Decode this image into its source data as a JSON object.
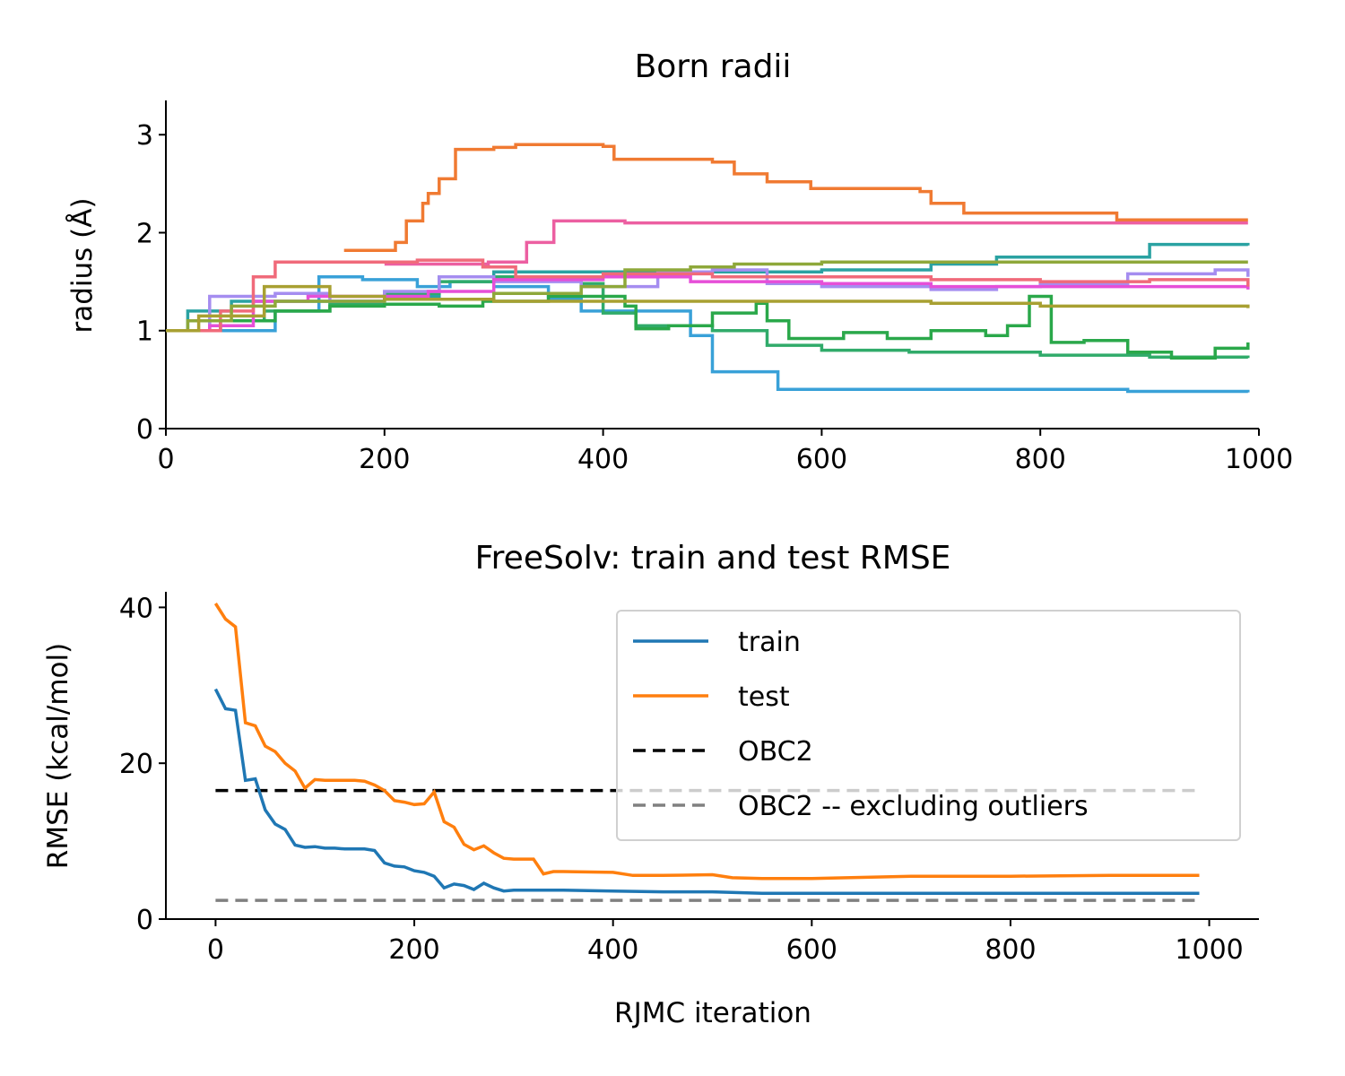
{
  "chart_data": [
    {
      "type": "line",
      "title": "Born radii",
      "xlabel": "",
      "ylabel": "radius (Å)",
      "xlim": [
        0,
        1000
      ],
      "ylim": [
        0,
        3.35
      ],
      "xticks": [
        0,
        200,
        400,
        600,
        800,
        1000
      ],
      "yticks": [
        0,
        1,
        2,
        3
      ],
      "xtick_labels": [
        "0",
        "200",
        "400",
        "600",
        "800",
        "1000"
      ],
      "ytick_labels": [
        "0",
        "1",
        "2",
        "3"
      ],
      "step": true,
      "grid": false,
      "legend": "none",
      "series": [
        {
          "color": "#f07a32",
          "points": [
            [
              163,
              1.82
            ],
            [
              210,
              1.82
            ],
            [
              210,
              1.9
            ],
            [
              220,
              2.12
            ],
            [
              235,
              2.3
            ],
            [
              240,
              2.4
            ],
            [
              250,
              2.55
            ],
            [
              265,
              2.85
            ],
            [
              300,
              2.87
            ],
            [
              320,
              2.9
            ],
            [
              400,
              2.88
            ],
            [
              410,
              2.75
            ],
            [
              500,
              2.72
            ],
            [
              520,
              2.6
            ],
            [
              550,
              2.52
            ],
            [
              590,
              2.45
            ],
            [
              690,
              2.42
            ],
            [
              700,
              2.3
            ],
            [
              730,
              2.2
            ],
            [
              770,
              2.2
            ],
            [
              860,
              2.2
            ],
            [
              870,
              2.13
            ],
            [
              990,
              2.13
            ]
          ]
        },
        {
          "color": "#ec5fa1",
          "points": [
            [
              200,
              1.68
            ],
            [
              295,
              1.7
            ],
            [
              330,
              1.9
            ],
            [
              355,
              2.12
            ],
            [
              420,
              2.1
            ],
            [
              500,
              2.1
            ],
            [
              700,
              2.1
            ],
            [
              990,
              2.1
            ]
          ]
        },
        {
          "color": "#39a1d8",
          "points": [
            [
              0,
              1.0
            ],
            [
              95,
              1.0
            ],
            [
              100,
              1.2
            ],
            [
              140,
              1.55
            ],
            [
              180,
              1.52
            ],
            [
              230,
              1.45
            ],
            [
              260,
              1.5
            ],
            [
              300,
              1.45
            ],
            [
              350,
              1.32
            ],
            [
              380,
              1.2
            ],
            [
              480,
              0.95
            ],
            [
              500,
              0.58
            ],
            [
              540,
              0.58
            ],
            [
              560,
              0.4
            ],
            [
              800,
              0.4
            ],
            [
              880,
              0.38
            ],
            [
              990,
              0.37
            ]
          ]
        },
        {
          "color": "#2aa2a2",
          "points": [
            [
              0,
              1.0
            ],
            [
              20,
              1.2
            ],
            [
              60,
              1.3
            ],
            [
              140,
              1.3
            ],
            [
              200,
              1.35
            ],
            [
              250,
              1.55
            ],
            [
              300,
              1.6
            ],
            [
              500,
              1.6
            ],
            [
              600,
              1.62
            ],
            [
              700,
              1.68
            ],
            [
              760,
              1.75
            ],
            [
              900,
              1.88
            ],
            [
              990,
              1.87
            ]
          ]
        },
        {
          "color": "#30ab6a",
          "points": [
            [
              0,
              1.0
            ],
            [
              40,
              1.1
            ],
            [
              90,
              1.2
            ],
            [
              150,
              1.28
            ],
            [
              200,
              1.38
            ],
            [
              250,
              1.5
            ],
            [
              300,
              1.55
            ],
            [
              380,
              1.48
            ],
            [
              400,
              1.18
            ],
            [
              430,
              1.05
            ],
            [
              500,
              1.0
            ],
            [
              550,
              0.85
            ],
            [
              600,
              0.8
            ],
            [
              680,
              0.78
            ],
            [
              800,
              0.75
            ],
            [
              900,
              0.73
            ],
            [
              990,
              0.72
            ]
          ]
        },
        {
          "color": "#2aa84a",
          "points": [
            [
              0,
              1.0
            ],
            [
              50,
              1.1
            ],
            [
              100,
              1.2
            ],
            [
              150,
              1.25
            ],
            [
              200,
              1.27
            ],
            [
              250,
              1.25
            ],
            [
              290,
              1.3
            ],
            [
              350,
              1.35
            ],
            [
              390,
              1.35
            ],
            [
              420,
              1.25
            ],
            [
              430,
              1.02
            ],
            [
              460,
              1.05
            ],
            [
              500,
              1.18
            ],
            [
              540,
              1.28
            ],
            [
              550,
              1.1
            ],
            [
              570,
              0.92
            ],
            [
              620,
              0.98
            ],
            [
              660,
              0.92
            ],
            [
              700,
              1.0
            ],
            [
              750,
              0.95
            ],
            [
              770,
              1.05
            ],
            [
              790,
              1.35
            ],
            [
              810,
              0.88
            ],
            [
              840,
              0.9
            ],
            [
              880,
              0.78
            ],
            [
              920,
              0.72
            ],
            [
              960,
              0.82
            ],
            [
              990,
              0.88
            ]
          ]
        },
        {
          "color": "#a58df0",
          "points": [
            [
              0,
              1.0
            ],
            [
              40,
              1.35
            ],
            [
              100,
              1.38
            ],
            [
              150,
              1.3
            ],
            [
              200,
              1.4
            ],
            [
              250,
              1.55
            ],
            [
              300,
              1.5
            ],
            [
              380,
              1.45
            ],
            [
              450,
              1.6
            ],
            [
              500,
              1.62
            ],
            [
              550,
              1.48
            ],
            [
              600,
              1.45
            ],
            [
              700,
              1.42
            ],
            [
              760,
              1.45
            ],
            [
              800,
              1.48
            ],
            [
              880,
              1.58
            ],
            [
              960,
              1.62
            ],
            [
              990,
              1.55
            ]
          ]
        },
        {
          "color": "#e64fd8",
          "points": [
            [
              0,
              1.0
            ],
            [
              40,
              1.05
            ],
            [
              80,
              1.3
            ],
            [
              130,
              1.35
            ],
            [
              200,
              1.35
            ],
            [
              240,
              1.4
            ],
            [
              300,
              1.52
            ],
            [
              400,
              1.55
            ],
            [
              480,
              1.5
            ],
            [
              600,
              1.48
            ],
            [
              700,
              1.45
            ],
            [
              800,
              1.45
            ],
            [
              900,
              1.45
            ],
            [
              990,
              1.42
            ]
          ]
        },
        {
          "color": "#f06a7a",
          "points": [
            [
              0,
              1.0
            ],
            [
              50,
              1.2
            ],
            [
              80,
              1.55
            ],
            [
              100,
              1.7
            ],
            [
              170,
              1.7
            ],
            [
              230,
              1.72
            ],
            [
              290,
              1.65
            ],
            [
              320,
              1.55
            ],
            [
              400,
              1.58
            ],
            [
              500,
              1.55
            ],
            [
              600,
              1.55
            ],
            [
              700,
              1.52
            ],
            [
              800,
              1.5
            ],
            [
              900,
              1.52
            ],
            [
              990,
              1.45
            ]
          ]
        },
        {
          "color": "#8ea83a",
          "points": [
            [
              0,
              1.0
            ],
            [
              20,
              1.1
            ],
            [
              60,
              1.25
            ],
            [
              100,
              1.3
            ],
            [
              200,
              1.32
            ],
            [
              300,
              1.38
            ],
            [
              380,
              1.45
            ],
            [
              420,
              1.62
            ],
            [
              480,
              1.65
            ],
            [
              520,
              1.68
            ],
            [
              600,
              1.7
            ],
            [
              800,
              1.7
            ],
            [
              990,
              1.7
            ]
          ]
        },
        {
          "color": "#a8a032",
          "points": [
            [
              0,
              1.0
            ],
            [
              30,
              1.15
            ],
            [
              90,
              1.45
            ],
            [
              150,
              1.35
            ],
            [
              200,
              1.32
            ],
            [
              300,
              1.3
            ],
            [
              400,
              1.3
            ],
            [
              500,
              1.3
            ],
            [
              700,
              1.28
            ],
            [
              800,
              1.25
            ],
            [
              990,
              1.23
            ]
          ]
        }
      ]
    },
    {
      "type": "line",
      "title": "FreeSolv: train and test RMSE",
      "xlabel": "RJMC iteration",
      "ylabel": "RMSE (kcal/mol)",
      "xlim": [
        -50,
        1050
      ],
      "ylim": [
        0,
        42
      ],
      "xticks": [
        0,
        200,
        400,
        600,
        800,
        1000
      ],
      "yticks": [
        0,
        20,
        40
      ],
      "xtick_labels": [
        "0",
        "200",
        "400",
        "600",
        "800",
        "1000"
      ],
      "ytick_labels": [
        "0",
        "20",
        "40"
      ],
      "grid": false,
      "legend": "upper right",
      "series": [
        {
          "name": "train",
          "color": "#1f77b4",
          "style": "solid",
          "x": [
            0,
            10,
            20,
            30,
            40,
            50,
            60,
            70,
            80,
            90,
            100,
            110,
            120,
            130,
            140,
            150,
            160,
            170,
            180,
            190,
            200,
            210,
            220,
            230,
            240,
            250,
            260,
            270,
            280,
            290,
            300,
            350,
            400,
            450,
            500,
            550,
            600,
            700,
            800,
            900,
            990
          ],
          "y": [
            29.5,
            27,
            26.8,
            17.8,
            18,
            14,
            12.2,
            11.5,
            9.5,
            9.2,
            9.3,
            9.1,
            9.1,
            9.0,
            9.0,
            9.0,
            8.8,
            7.2,
            6.8,
            6.7,
            6.2,
            6.0,
            5.5,
            4.0,
            4.5,
            4.3,
            3.8,
            4.6,
            4.0,
            3.6,
            3.7,
            3.7,
            3.6,
            3.5,
            3.5,
            3.3,
            3.3,
            3.3,
            3.3,
            3.3,
            3.3
          ]
        },
        {
          "name": "test",
          "color": "#ff7f0e",
          "style": "solid",
          "x": [
            0,
            10,
            20,
            30,
            40,
            50,
            60,
            70,
            80,
            90,
            100,
            110,
            120,
            130,
            140,
            150,
            160,
            170,
            180,
            190,
            200,
            210,
            220,
            230,
            240,
            250,
            260,
            270,
            280,
            290,
            300,
            320,
            330,
            340,
            350,
            400,
            420,
            450,
            500,
            520,
            550,
            600,
            700,
            800,
            900,
            990
          ],
          "y": [
            40.5,
            38.5,
            37.5,
            25.2,
            24.8,
            22.2,
            21.5,
            20,
            19,
            16.8,
            17.9,
            17.8,
            17.8,
            17.8,
            17.8,
            17.7,
            17.2,
            16.5,
            15.2,
            15.0,
            14.7,
            14.8,
            16.3,
            12.5,
            11.8,
            9.6,
            8.9,
            9.4,
            8.5,
            7.8,
            7.7,
            7.7,
            5.8,
            6.1,
            6.1,
            6.0,
            5.6,
            5.6,
            5.7,
            5.3,
            5.2,
            5.2,
            5.5,
            5.5,
            5.6,
            5.6
          ]
        },
        {
          "name": "OBC2",
          "color": "#000000",
          "style": "dashed",
          "x": [
            0,
            990
          ],
          "y": [
            16.5,
            16.5
          ]
        },
        {
          "name": "OBC2 -- excluding outliers",
          "color": "#808080",
          "style": "dashed",
          "x": [
            0,
            990
          ],
          "y": [
            2.4,
            2.4
          ]
        }
      ]
    }
  ]
}
